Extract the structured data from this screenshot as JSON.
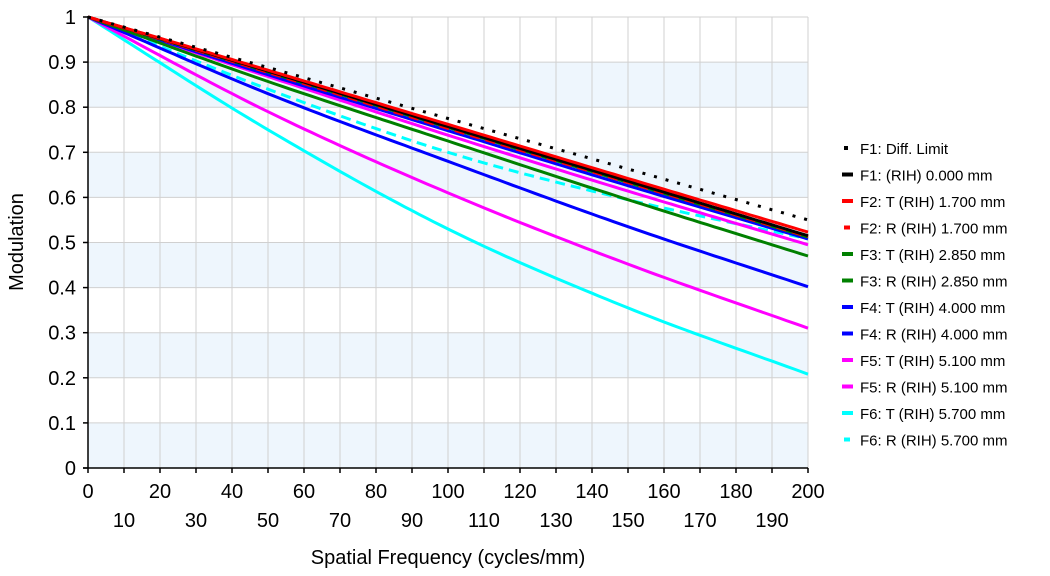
{
  "chart_data": {
    "type": "line",
    "title": "",
    "xlabel": "Spatial Frequency (cycles/mm)",
    "ylabel": "Modulation",
    "xlim": [
      0,
      200
    ],
    "ylim": [
      0,
      1
    ],
    "grid": true,
    "legend_position": "right",
    "x_ticks_top_row": [
      "0",
      "20",
      "40",
      "60",
      "80",
      "100",
      "120",
      "140",
      "160",
      "180",
      "200"
    ],
    "x_ticks_bottom_row": [
      "10",
      "30",
      "50",
      "70",
      "90",
      "110",
      "130",
      "150",
      "170",
      "190"
    ],
    "y_ticks": [
      "0",
      "0.1",
      "0.2",
      "0.3",
      "0.4",
      "0.5",
      "0.6",
      "0.7",
      "0.8",
      "0.9",
      "1"
    ],
    "x": [
      0,
      50,
      100,
      150,
      200
    ],
    "series": [
      {
        "name": "F1: Diff. Limit",
        "color": "#000000",
        "style": "dotted",
        "values": [
          1.0,
          0.888,
          0.775,
          0.663,
          0.55
        ]
      },
      {
        "name": "F1: (RIH) 0.000 mm",
        "color": "#000000",
        "style": "solid",
        "values": [
          1.0,
          0.88,
          0.757,
          0.636,
          0.515
        ]
      },
      {
        "name": "F2: T (RIH) 1.700 mm",
        "color": "#ff0000",
        "style": "solid",
        "values": [
          1.0,
          0.882,
          0.762,
          0.642,
          0.523
        ]
      },
      {
        "name": "F2: R (RIH) 1.700 mm",
        "color": "#ff0000",
        "style": "dashed",
        "values": [
          1.0,
          0.877,
          0.753,
          0.633,
          0.513
        ]
      },
      {
        "name": "F3: T (RIH) 2.850 mm",
        "color": "#008000",
        "style": "solid",
        "values": [
          1.0,
          0.878,
          0.755,
          0.633,
          0.512
        ]
      },
      {
        "name": "F3: R (RIH) 2.850 mm",
        "color": "#008000",
        "style": "solid",
        "values": [
          1.0,
          0.857,
          0.725,
          0.595,
          0.47
        ]
      },
      {
        "name": "F4: T (RIH) 4.000 mm",
        "color": "#0000ff",
        "style": "solid",
        "values": [
          1.0,
          0.83,
          0.68,
          0.535,
          0.402
        ]
      },
      {
        "name": "F4: R (RIH) 4.000 mm",
        "color": "#0000ff",
        "style": "solid",
        "values": [
          1.0,
          0.872,
          0.748,
          0.626,
          0.508
        ]
      },
      {
        "name": "F5: T (RIH) 5.100 mm",
        "color": "#ff00ff",
        "style": "solid",
        "values": [
          1.0,
          0.79,
          0.61,
          0.452,
          0.31
        ]
      },
      {
        "name": "F5: R (RIH) 5.100 mm",
        "color": "#ff00ff",
        "style": "solid",
        "values": [
          1.0,
          0.868,
          0.738,
          0.614,
          0.495
        ]
      },
      {
        "name": "F6: T (RIH) 5.700 mm",
        "color": "#00ffff",
        "style": "solid",
        "values": [
          1.0,
          0.75,
          0.53,
          0.355,
          0.208
        ]
      },
      {
        "name": "F6: R (RIH) 5.700 mm",
        "color": "#00ffff",
        "style": "dashed",
        "values": [
          1.0,
          0.84,
          0.7,
          0.595,
          0.508
        ]
      }
    ]
  }
}
